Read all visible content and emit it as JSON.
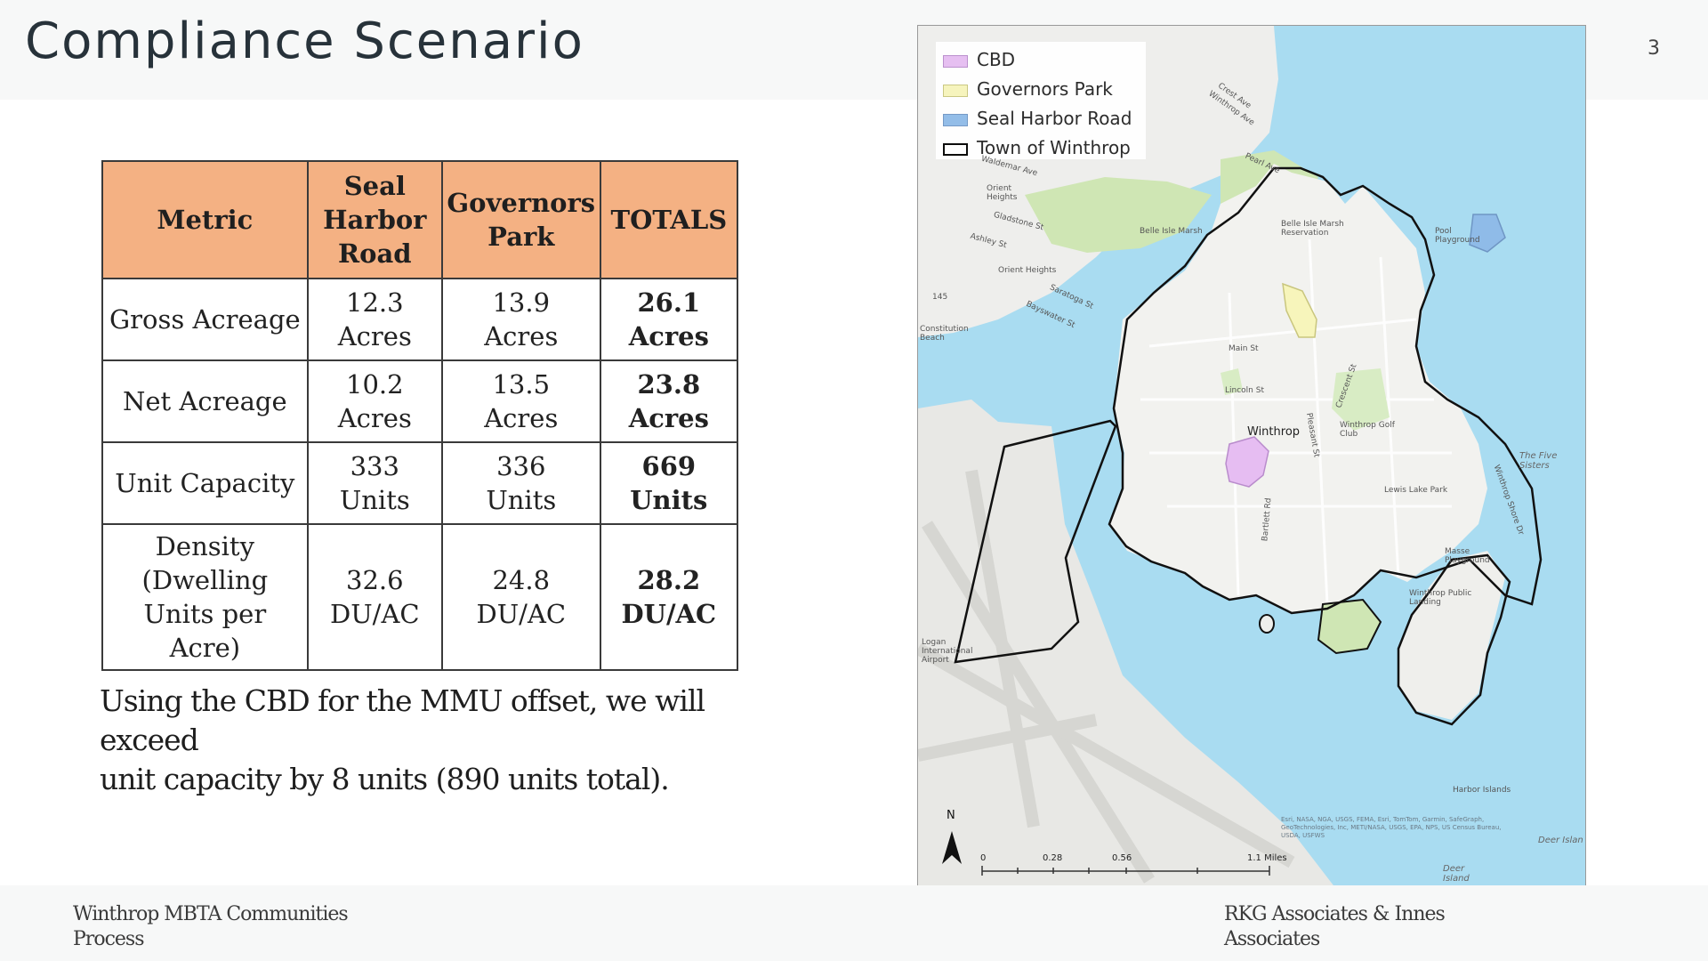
{
  "slide": {
    "title": "Compliance Scenario",
    "page_number": "3"
  },
  "table": {
    "headers": {
      "metric": "Metric",
      "seal_harbor": [
        "Seal",
        "Harbor",
        "Road"
      ],
      "governors_park": [
        "Governors",
        "Park"
      ],
      "totals": "TOTALS"
    },
    "rows": [
      {
        "metric": [
          "Gross Acreage"
        ],
        "seal_harbor": [
          "12.3",
          "Acres"
        ],
        "governors_park": [
          "13.9",
          "Acres"
        ],
        "totals": [
          "26.1",
          "Acres"
        ]
      },
      {
        "metric": [
          "Net Acreage"
        ],
        "seal_harbor": [
          "10.2",
          "Acres"
        ],
        "governors_park": [
          "13.5",
          "Acres"
        ],
        "totals": [
          "23.8",
          "Acres"
        ]
      },
      {
        "metric": [
          "Unit Capacity"
        ],
        "seal_harbor": [
          "333",
          "Units"
        ],
        "governors_park": [
          "336",
          "Units"
        ],
        "totals": [
          "669",
          "Units"
        ]
      },
      {
        "metric": [
          "Density",
          "(Dwelling",
          "Units per",
          "Acre)"
        ],
        "seal_harbor": [
          "32.6",
          "DU/AC"
        ],
        "governors_park": [
          "24.8",
          "DU/AC"
        ],
        "totals": [
          "28.2",
          "DU/AC"
        ]
      }
    ],
    "header_color": "#f4b183"
  },
  "note": {
    "line1": "Using the CBD for the MMU offset, we will exceed",
    "line2": "unit capacity by 8 units (890 units total)."
  },
  "map": {
    "legend": [
      {
        "label": "CBD",
        "color": "#e6bdf2",
        "border": "#b98ccc"
      },
      {
        "label": "Governors Park",
        "color": "#f7f5bb",
        "border": "#c9c67e"
      },
      {
        "label": "Seal Harbor Road",
        "color": "#8fbbe8",
        "border": "#6f96c4"
      },
      {
        "label": "Town of Winthrop",
        "color": "#ffffff",
        "border": "#000000"
      }
    ],
    "town_label": "Winthrop",
    "place_labels": {
      "orient_heights": "Orient Heights",
      "orient_heights_2": "Orient\nHeights",
      "belle_isle": "Belle Isle Marsh",
      "belle_isle_res": "Belle Isle Marsh\nReservation",
      "pool": "Pool\nPlayground",
      "constitution_beach": "Constitution\nBeach",
      "golf": "Winthrop Golf\nClub",
      "lewis_lake": "Lewis Lake Park",
      "masse": "Masse\nPlayground",
      "public": "Winthrop Public\nLanding",
      "logan": "Logan\nInternational\nAirport",
      "harbor_islands": "Harbor Islands",
      "five_sisters": "The Five\nSisters",
      "deer_island": "Deer\nIsland",
      "deer_island_2": "Deer Islan",
      "main_st": "Main St",
      "lincoln_st": "Lincoln St",
      "saratoga": "Saratoga St",
      "bayswater": "Bayswater St",
      "crest": "Crest Ave",
      "winthrop_ave": "Winthrop Ave",
      "pearl": "Pearl Ave",
      "waldemar": "Waldemar Ave",
      "gladstone": "Gladstone St",
      "ashley": "Ashley St",
      "crescent": "Crescent St",
      "winthrop_shore": "Winthrop Shore Dr",
      "bartlett": "Bartlett Rd",
      "pleasant": "Pleasant St",
      "road_145": "145"
    },
    "north": "N",
    "scale": [
      "0",
      "0.28",
      "0.56",
      "1.1 Miles"
    ],
    "attribution": "Esri, NASA, NGA, USGS, FEMA, Esri, TomTom, Garmin, SafeGraph, GeoTechnologies, Inc, METI/NASA, USGS, EPA, NPS, US Census Bureau, USDA, USFWS"
  },
  "footer": {
    "left": [
      "Winthrop MBTA Communities",
      "Process"
    ],
    "right": [
      "RKG Associates & Innes",
      "Associates"
    ]
  }
}
